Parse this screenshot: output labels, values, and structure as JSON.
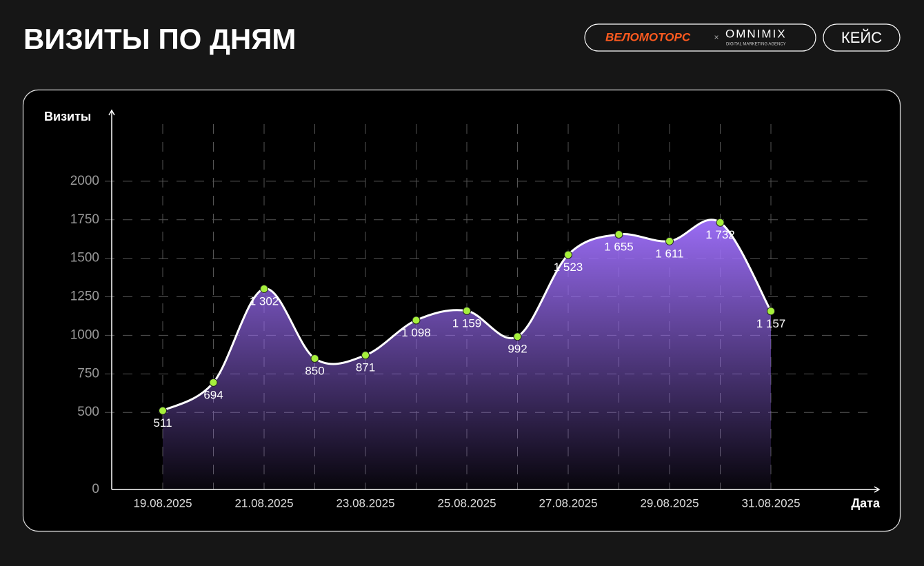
{
  "header": {
    "title": "ВИЗИТЫ ПО ДНЯМ",
    "brand": "ВЕЛОМОТОРС",
    "separator": "×",
    "partner": "OMNIMIX",
    "partner_tagline": "DIGITAL MARKETING AGENCY",
    "button": "КЕЙС"
  },
  "chart_data": {
    "type": "area",
    "y_label": "Визиты",
    "x_label": "Дата",
    "categories": [
      "19.08.2025",
      null,
      "21.08.2025",
      null,
      "23.08.2025",
      null,
      "25.08.2025",
      null,
      "27.08.2025",
      null,
      "29.08.2025",
      null,
      "31.08.2025"
    ],
    "values": [
      511,
      694,
      1302,
      850,
      871,
      1098,
      1159,
      992,
      1523,
      1655,
      1611,
      1732,
      1157
    ],
    "value_labels": [
      "511",
      "694",
      "1 302",
      "850",
      "871",
      "1 098",
      "1 159",
      "992",
      "1 523",
      "1 655",
      "1 611",
      "1 732",
      "1 157"
    ],
    "ylim": [
      0,
      2460
    ],
    "yticks": [
      0,
      500,
      750,
      1000,
      1250,
      1500,
      1750,
      2000
    ],
    "grid": true,
    "color": "#9a6cf4",
    "marker_color": "#a6f03c"
  }
}
